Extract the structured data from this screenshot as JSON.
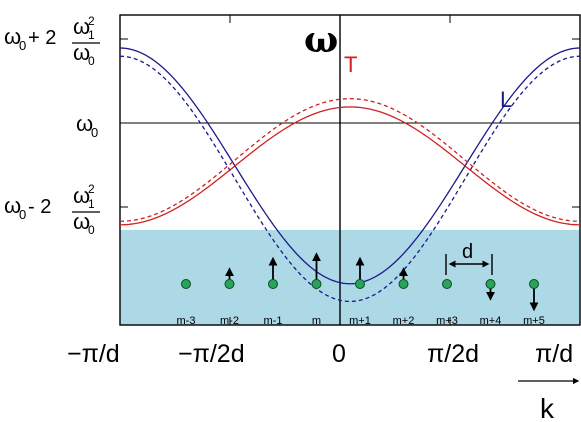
{
  "chart_data": {
    "type": "line",
    "title": "",
    "xlabel": "k",
    "ylabel": "ω",
    "xlim": [
      -3.14159,
      3.14159
    ],
    "ylim": [
      -1.35,
      1.28
    ],
    "x_ticks": [
      {
        "value": -3.14159,
        "label": "−π/d"
      },
      {
        "value": -1.5708,
        "label": "−π/2d"
      },
      {
        "value": 0,
        "label": "0"
      },
      {
        "value": 1.5708,
        "label": "π/2d"
      },
      {
        "value": 3.14159,
        "label": "π/d"
      }
    ],
    "y_ticks": [
      {
        "value": 1,
        "label": "ω0+2ω1²/ω0"
      },
      {
        "value": 0,
        "label": "ω0"
      },
      {
        "value": -1,
        "label": "ω0−2ω1²/ω0"
      }
    ],
    "series": [
      {
        "name": "L",
        "color": "#1a1a8c",
        "style": "solid",
        "y_at_k0": -1.0,
        "y_at_zone_edge": 1.0
      },
      {
        "name": "L",
        "color": "#1a1a8c",
        "style": "dashed",
        "y_at_k0": -1.15,
        "y_at_zone_edge": 0.93
      },
      {
        "name": "T",
        "color": "#d42020",
        "style": "solid",
        "y_at_k0": 0.5,
        "y_at_zone_edge": -0.5
      },
      {
        "name": "T",
        "color": "#d42020",
        "style": "dashed",
        "y_at_k0": 0.57,
        "y_at_zone_edge": -0.47
      }
    ],
    "lattice": {
      "spacing_label": "d",
      "background": "#add8e6",
      "sites": [
        {
          "label": "m-3",
          "arrow": 0
        },
        {
          "label": "m-2",
          "arrow": 0.5
        },
        {
          "label": "m-1",
          "arrow": 0.85
        },
        {
          "label": "m",
          "arrow": 1.0
        },
        {
          "label": "m+1",
          "arrow": 0.85
        },
        {
          "label": "m+2",
          "arrow": 0.5
        },
        {
          "label": "m+3",
          "arrow": 0
        },
        {
          "label": "m+4",
          "arrow": -0.5
        },
        {
          "label": "m+5",
          "arrow": -0.85
        }
      ]
    }
  }
}
